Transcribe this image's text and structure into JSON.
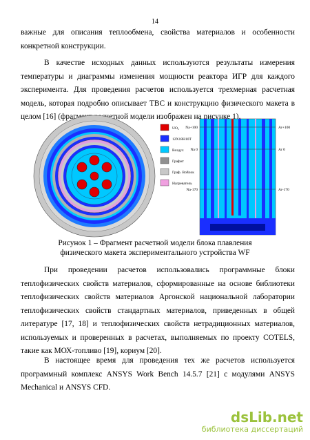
{
  "page_number": "14",
  "paragraphs": [
    "важные для описания теплообмена, свойства материалов и особенности конкретной конструкции.",
    "В качестве исходных данных используются результаты измерения температуры и диаграммы изменения мощности реактора ИГР для каждого эксперимента. Для проведения расчетов используется трехмерная расчетная модель, которая подробно описывает ТВС и конструкцию физического макета в целом [16] (фрагмент расчетной модели изображен на рисунке 1).",
    "При проведении расчетов использовались программные блоки теплофизических свойств материалов, сформированные на основе библиотеки теплофизических свойств материалов Аргонской национальной лаборатории теплофизических свойств стандартных материалов, приведенных в общей литературе [17, 18] и теплофизических свойств нетрадиционных материалов, используемых и проверенных в расчетах, выполняемых по проекту COTELS, такие как МОХ-топливо [19], кориум [20].",
    "В настоящее время для проведения тех же расчетов используется программный комплекс ANSYS Work Bench 14.5.7 [21] с модулями ANSYS Mechanical и ANSYS CFD."
  ],
  "figure": {
    "legend": [
      "UO₂",
      "12Х18Н10Т",
      "Воздух",
      "Графит",
      "Граф. Войлок",
      "Нагреватель"
    ],
    "left_levels": [
      "Na+100",
      "Na 0",
      "Na-170"
    ],
    "right_levels": [
      "Ar+100",
      "Ar 0",
      "Ar-170"
    ],
    "caption": "Рисунок 1 – Фрагмент расчетной модели блока плавления физического макета экспериментального устройства WF"
  },
  "watermark": {
    "logo": "dsLib.net",
    "subtitle": "библиотека диссертаций"
  }
}
